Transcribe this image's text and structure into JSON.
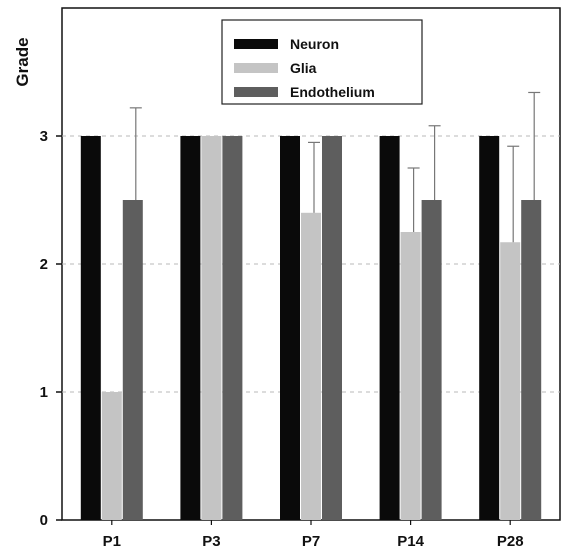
{
  "chart_data": {
    "type": "bar",
    "title": "",
    "xlabel": "",
    "ylabel": "Grade",
    "ylim": [
      0,
      4
    ],
    "yticks": [
      0,
      1,
      2,
      3
    ],
    "grid": "horizontal dashed",
    "legend_position": "top-center",
    "categories": [
      "P1",
      "P3",
      "P7",
      "P14",
      "P28"
    ],
    "series": [
      {
        "name": "Neuron",
        "color": "#0a0a0a",
        "values": [
          3,
          3,
          3,
          3,
          3
        ],
        "errors": [
          0,
          0,
          0,
          0,
          0
        ]
      },
      {
        "name": "Glia",
        "color": "#c4c4c4",
        "values": [
          1,
          3,
          2.4,
          2.25,
          2.17
        ],
        "errors": [
          0,
          0,
          0.55,
          0.5,
          0.75
        ]
      },
      {
        "name": "Endothelium",
        "color": "#5e5e5e",
        "values": [
          2.5,
          3,
          3,
          2.5,
          2.5
        ],
        "errors": [
          0.72,
          0,
          0,
          0.58,
          0.84
        ]
      }
    ]
  }
}
